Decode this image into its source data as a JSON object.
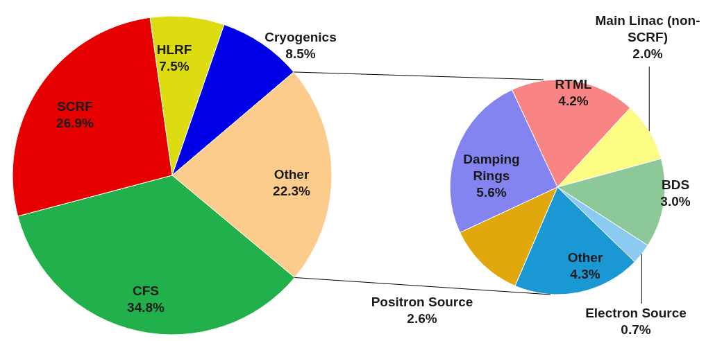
{
  "chart_data": [
    {
      "type": "pie",
      "categories": [
        "HLRF",
        "Cryogenics",
        "Other",
        "CFS",
        "SCRF"
      ],
      "values": [
        7.5,
        8.5,
        22.3,
        34.8,
        26.9
      ],
      "value_labels": [
        "7.5%",
        "8.5%",
        "22.3%",
        "34.8%",
        "26.9%"
      ],
      "colors": [
        "#dcdc10",
        "#0000e6",
        "#fccc8c",
        "#22b04c",
        "#e60000"
      ]
    },
    {
      "type": "pie",
      "categories": [
        "RTML",
        "Main Linac (non-SCRF)",
        "BDS",
        "Electron Source",
        "Other",
        "Positron Source",
        "Damping Rings"
      ],
      "values": [
        4.2,
        2.0,
        3.0,
        0.7,
        4.3,
        2.6,
        5.6
      ],
      "value_labels": [
        "4.2%",
        "2.0%",
        "3.0%",
        "0.7%",
        "4.3%",
        "2.6%",
        "5.6%"
      ],
      "colors": [
        "#f88484",
        "#fcfc84",
        "#8cc898",
        "#8ccaf2",
        "#1a98d4",
        "#e0a80c",
        "#8484f0"
      ]
    }
  ]
}
